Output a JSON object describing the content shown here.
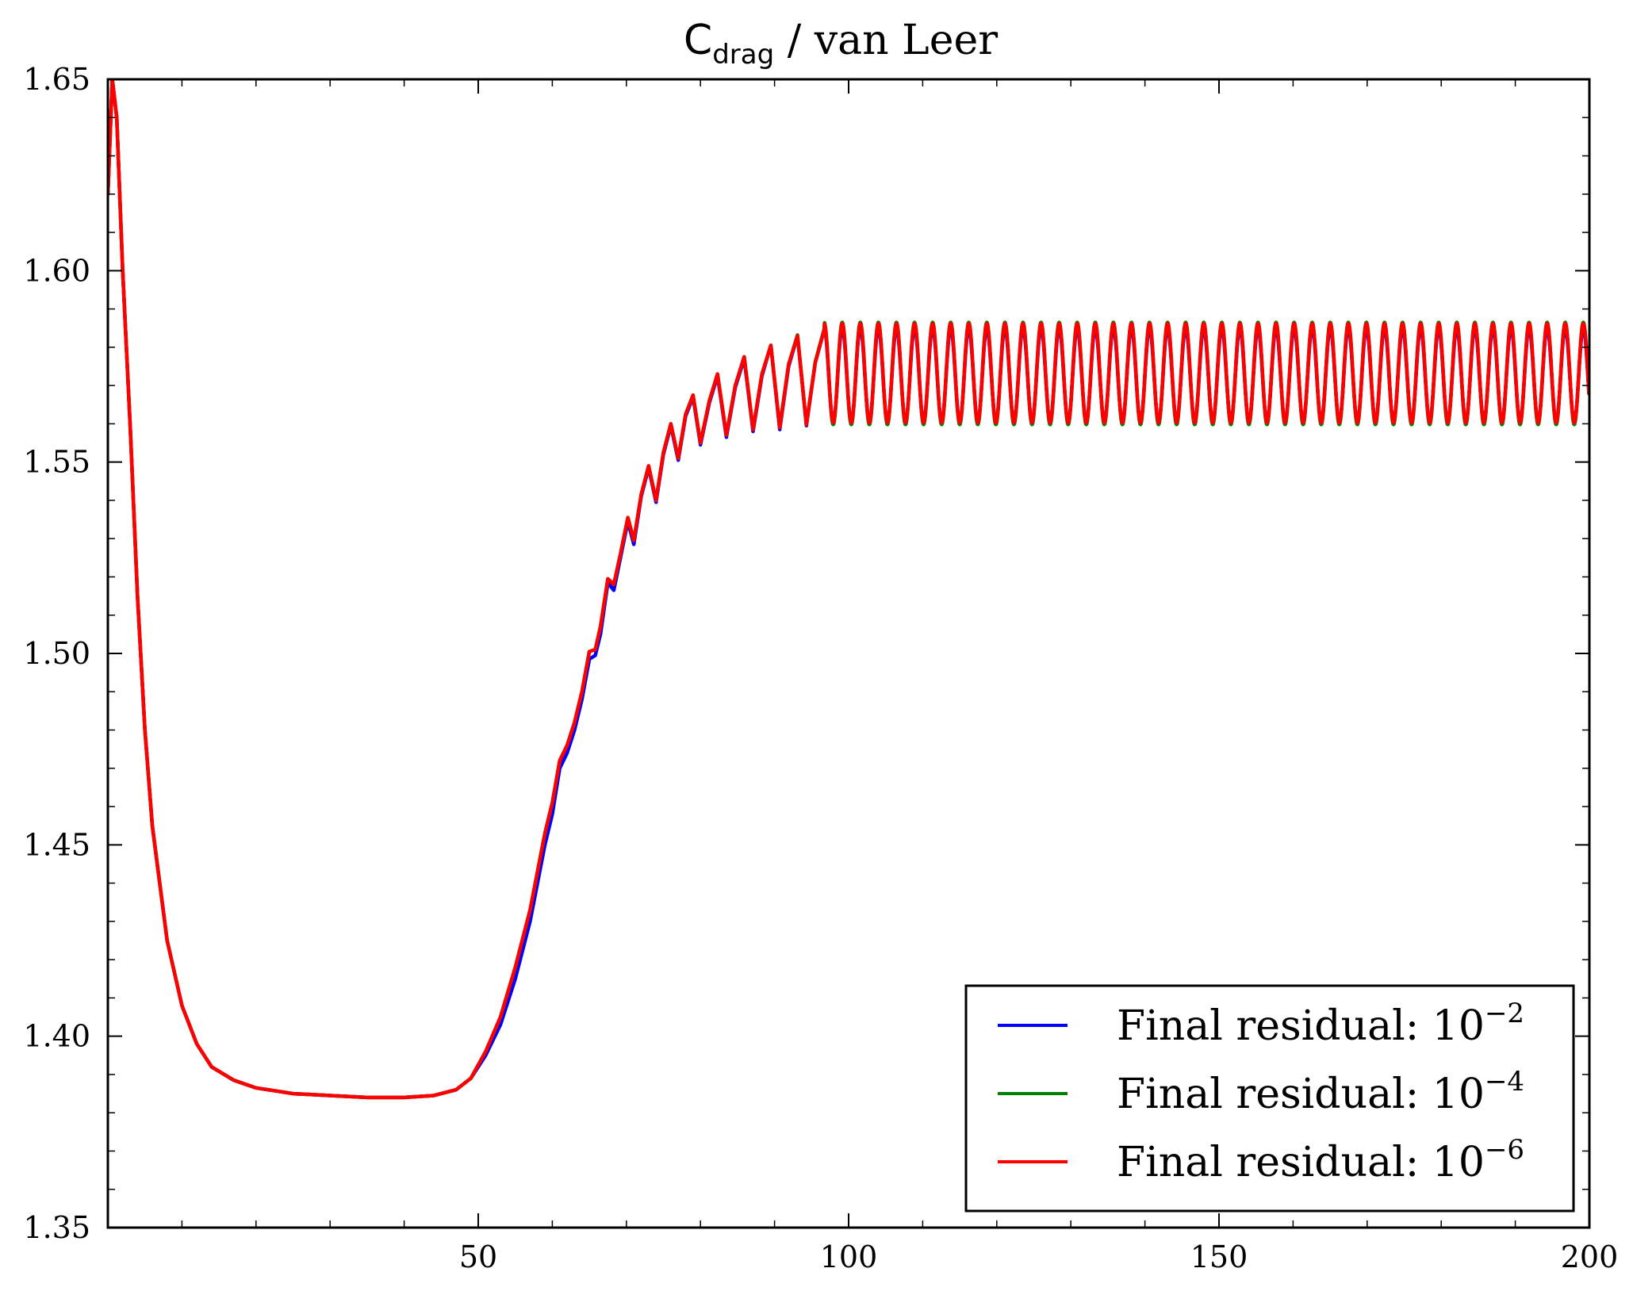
{
  "chart_data": {
    "type": "line",
    "title": {
      "main": "C",
      "subscript": "drag",
      "rest": " / van Leer"
    },
    "xlabel": "",
    "ylabel": "",
    "xlim": [
      0,
      200
    ],
    "ylim": [
      1.35,
      1.65
    ],
    "x_ticks": [
      50,
      100,
      150,
      200
    ],
    "x_tick_labels": [
      "50",
      "100",
      "150",
      "200"
    ],
    "y_ticks": [
      1.35,
      1.4,
      1.45,
      1.5,
      1.55,
      1.6,
      1.65
    ],
    "y_tick_labels": [
      "1.35",
      "1.40",
      "1.45",
      "1.50",
      "1.55",
      "1.60",
      "1.65"
    ],
    "grid": false,
    "legend_position": "bottom-right",
    "series": [
      {
        "name_text": "Final residual: 10",
        "name_exp": "−2",
        "color": "#0000ff",
        "amplitude": [
          0,
          1.585,
          1.5605
        ],
        "points": [
          [
            0,
            1.62
          ],
          [
            0.6,
            1.65
          ],
          [
            1.2,
            1.64
          ],
          [
            2,
            1.6
          ],
          [
            3,
            1.56
          ],
          [
            4,
            1.515
          ],
          [
            5,
            1.48
          ],
          [
            6,
            1.455
          ],
          [
            8,
            1.425
          ],
          [
            10,
            1.408
          ],
          [
            12,
            1.398
          ],
          [
            14,
            1.392
          ],
          [
            17,
            1.3885
          ],
          [
            20,
            1.3865
          ],
          [
            25,
            1.385
          ],
          [
            30,
            1.3845
          ],
          [
            35,
            1.384
          ],
          [
            40,
            1.384
          ],
          [
            44,
            1.3845
          ],
          [
            47,
            1.386
          ],
          [
            49,
            1.389
          ],
          [
            51,
            1.395
          ],
          [
            53,
            1.403
          ],
          [
            55,
            1.415
          ],
          [
            57,
            1.43
          ],
          [
            59,
            1.45
          ],
          [
            60,
            1.458
          ],
          [
            61,
            1.47
          ],
          [
            62,
            1.474
          ],
          [
            63,
            1.48
          ],
          [
            64,
            1.488
          ],
          [
            65,
            1.4985
          ],
          [
            65.8,
            1.4995
          ],
          [
            66.5,
            1.505
          ],
          [
            67.5,
            1.5185
          ],
          [
            68.3,
            1.5165
          ],
          [
            69.2,
            1.525
          ],
          [
            70.2,
            1.5345
          ],
          [
            71,
            1.5285
          ],
          [
            72,
            1.541
          ],
          [
            73,
            1.5485
          ],
          [
            74,
            1.5395
          ],
          [
            75,
            1.552
          ],
          [
            76,
            1.5595
          ],
          [
            77,
            1.5505
          ],
          [
            78,
            1.562
          ],
          [
            79,
            1.567
          ],
          [
            80,
            1.5545
          ],
          [
            81.2,
            1.5655
          ],
          [
            82.3,
            1.5725
          ],
          [
            83.5,
            1.5565
          ],
          [
            84.7,
            1.5695
          ],
          [
            85.9,
            1.577
          ],
          [
            87.1,
            1.558
          ],
          [
            88.3,
            1.5725
          ],
          [
            89.5,
            1.5805
          ],
          [
            90.7,
            1.5585
          ],
          [
            91.9,
            1.575
          ],
          [
            93.1,
            1.583
          ],
          [
            94.3,
            1.5595
          ],
          [
            95.5,
            1.576
          ],
          [
            96.7,
            1.5845
          ]
        ]
      },
      {
        "name_text": "Final residual: 10",
        "name_exp": "−4",
        "color": "#008000",
        "amplitude": [
          0,
          1.5865,
          1.5598
        ],
        "points": [
          [
            0,
            1.62
          ],
          [
            0.6,
            1.65
          ],
          [
            1.2,
            1.64
          ],
          [
            2,
            1.6
          ],
          [
            3,
            1.56
          ],
          [
            4,
            1.515
          ],
          [
            5,
            1.48
          ],
          [
            6,
            1.455
          ],
          [
            8,
            1.425
          ],
          [
            10,
            1.408
          ],
          [
            12,
            1.398
          ],
          [
            14,
            1.392
          ],
          [
            17,
            1.3885
          ],
          [
            20,
            1.3865
          ],
          [
            25,
            1.385
          ],
          [
            30,
            1.3845
          ],
          [
            35,
            1.384
          ],
          [
            40,
            1.384
          ],
          [
            44,
            1.3845
          ],
          [
            47,
            1.386
          ],
          [
            49,
            1.389
          ],
          [
            51,
            1.396
          ],
          [
            53,
            1.405
          ],
          [
            55,
            1.418
          ],
          [
            57,
            1.433
          ],
          [
            59,
            1.453
          ],
          [
            60,
            1.461
          ],
          [
            61,
            1.472
          ],
          [
            62,
            1.476
          ],
          [
            63,
            1.482
          ],
          [
            64,
            1.49
          ],
          [
            65,
            1.5005
          ],
          [
            65.8,
            1.501
          ],
          [
            66.5,
            1.507
          ],
          [
            67.5,
            1.5195
          ],
          [
            68.3,
            1.518
          ],
          [
            69.2,
            1.526
          ],
          [
            70.2,
            1.5355
          ],
          [
            71,
            1.5295
          ],
          [
            72,
            1.5415
          ],
          [
            73,
            1.549
          ],
          [
            74,
            1.54
          ],
          [
            75,
            1.5525
          ],
          [
            76,
            1.56
          ],
          [
            77,
            1.551
          ],
          [
            78,
            1.5625
          ],
          [
            79,
            1.5675
          ],
          [
            80,
            1.555
          ],
          [
            81.2,
            1.566
          ],
          [
            82.3,
            1.573
          ],
          [
            83.5,
            1.557
          ],
          [
            84.7,
            1.57
          ],
          [
            85.9,
            1.5775
          ],
          [
            87.1,
            1.5585
          ],
          [
            88.3,
            1.573
          ],
          [
            89.5,
            1.5805
          ],
          [
            90.7,
            1.559
          ],
          [
            91.9,
            1.5755
          ],
          [
            93.1,
            1.5832
          ],
          [
            94.3,
            1.5598
          ],
          [
            95.5,
            1.5762
          ],
          [
            96.7,
            1.5848
          ]
        ]
      },
      {
        "name_text": "Final residual: 10",
        "name_exp": "−6",
        "color": "#ff0000",
        "amplitude": [
          0,
          1.5862,
          1.5603
        ],
        "points": [
          [
            0,
            1.62
          ],
          [
            0.6,
            1.65
          ],
          [
            1.2,
            1.64
          ],
          [
            2,
            1.6
          ],
          [
            3,
            1.56
          ],
          [
            4,
            1.515
          ],
          [
            5,
            1.48
          ],
          [
            6,
            1.455
          ],
          [
            8,
            1.425
          ],
          [
            10,
            1.408
          ],
          [
            12,
            1.398
          ],
          [
            14,
            1.392
          ],
          [
            17,
            1.3885
          ],
          [
            20,
            1.3865
          ],
          [
            25,
            1.385
          ],
          [
            30,
            1.3845
          ],
          [
            35,
            1.384
          ],
          [
            40,
            1.384
          ],
          [
            44,
            1.3845
          ],
          [
            47,
            1.386
          ],
          [
            49,
            1.389
          ],
          [
            51,
            1.396
          ],
          [
            53,
            1.405
          ],
          [
            55,
            1.418
          ],
          [
            57,
            1.433
          ],
          [
            59,
            1.453
          ],
          [
            60,
            1.461
          ],
          [
            61,
            1.472
          ],
          [
            62,
            1.476
          ],
          [
            63,
            1.482
          ],
          [
            64,
            1.49
          ],
          [
            65,
            1.5005
          ],
          [
            65.8,
            1.501
          ],
          [
            66.5,
            1.507
          ],
          [
            67.5,
            1.5195
          ],
          [
            68.3,
            1.518
          ],
          [
            69.2,
            1.526
          ],
          [
            70.2,
            1.5355
          ],
          [
            71,
            1.5295
          ],
          [
            72,
            1.5415
          ],
          [
            73,
            1.549
          ],
          [
            74,
            1.54
          ],
          [
            75,
            1.5525
          ],
          [
            76,
            1.56
          ],
          [
            77,
            1.551
          ],
          [
            78,
            1.5625
          ],
          [
            79,
            1.5675
          ],
          [
            80,
            1.555
          ],
          [
            81.2,
            1.566
          ],
          [
            82.3,
            1.573
          ],
          [
            83.5,
            1.557
          ],
          [
            84.7,
            1.57
          ],
          [
            85.9,
            1.5775
          ],
          [
            87.1,
            1.5585
          ],
          [
            88.3,
            1.573
          ],
          [
            89.5,
            1.5805
          ],
          [
            90.7,
            1.559
          ],
          [
            91.9,
            1.5755
          ],
          [
            93.1,
            1.583
          ],
          [
            94.3,
            1.5598
          ],
          [
            95.5,
            1.576
          ],
          [
            96.7,
            1.5845
          ]
        ]
      }
    ],
    "oscillation": {
      "from_x": 96.7,
      "to_x": 200,
      "period": 2.44
    }
  }
}
